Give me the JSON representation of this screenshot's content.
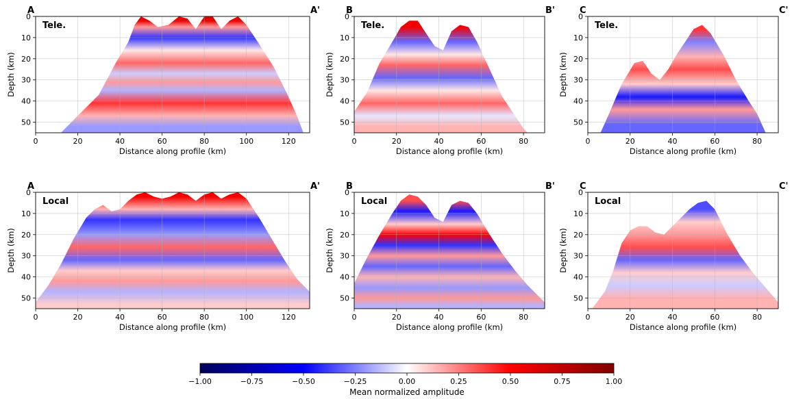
{
  "chart_data": [
    {
      "type": "heatmap",
      "label": "Tele.",
      "start_label": "A",
      "end_label": "A'",
      "xlabel": "Distance along profile (km)",
      "ylabel": "Depth (km)",
      "xlim": [
        0,
        130
      ],
      "ylim": [
        55,
        0
      ],
      "xticks": [
        0,
        20,
        40,
        60,
        80,
        100,
        120
      ],
      "yticks": [
        0,
        10,
        20,
        30,
        40,
        50
      ],
      "grid": true,
      "coverage_top_depth_km": [
        [
          12,
          55
        ],
        [
          20,
          47
        ],
        [
          30,
          37
        ],
        [
          38,
          22
        ],
        [
          44,
          12
        ],
        [
          47,
          4
        ],
        [
          50,
          0
        ],
        [
          54,
          2
        ],
        [
          58,
          5
        ],
        [
          63,
          4
        ],
        [
          68,
          0
        ],
        [
          72,
          1
        ],
        [
          76,
          6
        ],
        [
          80,
          0
        ],
        [
          84,
          0
        ],
        [
          88,
          6
        ],
        [
          92,
          2
        ],
        [
          96,
          0
        ],
        [
          100,
          4
        ],
        [
          106,
          13
        ],
        [
          113,
          24
        ],
        [
          119,
          36
        ],
        [
          124,
          47
        ],
        [
          127,
          55
        ]
      ],
      "bands": [
        {
          "depth_km": 2,
          "amplitude": 0.6
        },
        {
          "depth_km": 5,
          "amplitude": 0.2
        },
        {
          "depth_km": 10,
          "amplitude": -0.4
        },
        {
          "depth_km": 16,
          "amplitude": 0.05
        },
        {
          "depth_km": 22,
          "amplitude": 0.3
        },
        {
          "depth_km": 27,
          "amplitude": -0.1
        },
        {
          "depth_km": 31,
          "amplitude": 0.2
        },
        {
          "depth_km": 35,
          "amplitude": -0.15
        },
        {
          "depth_km": 41,
          "amplitude": 0.4
        },
        {
          "depth_km": 47,
          "amplitude": 0.15
        },
        {
          "depth_km": 52,
          "amplitude": -0.2
        }
      ]
    },
    {
      "type": "heatmap",
      "label": "Tele.",
      "start_label": "B",
      "end_label": "B'",
      "xlabel": "Distance along profile (km)",
      "ylabel": "Depth (km)",
      "xlim": [
        0,
        90
      ],
      "ylim": [
        55,
        0
      ],
      "xticks": [
        0,
        20,
        40,
        60,
        80
      ],
      "yticks": [
        0,
        10,
        20,
        30,
        40,
        50
      ],
      "grid": true,
      "coverage_top_depth_km": [
        [
          0,
          45
        ],
        [
          6,
          36
        ],
        [
          12,
          22
        ],
        [
          18,
          12
        ],
        [
          22,
          5
        ],
        [
          26,
          2
        ],
        [
          30,
          2
        ],
        [
          34,
          8
        ],
        [
          38,
          14
        ],
        [
          42,
          16
        ],
        [
          46,
          7
        ],
        [
          50,
          4
        ],
        [
          54,
          5
        ],
        [
          58,
          12
        ],
        [
          64,
          25
        ],
        [
          70,
          38
        ],
        [
          76,
          47
        ],
        [
          80,
          53
        ],
        [
          82,
          55
        ]
      ],
      "bands": [
        {
          "depth_km": 5,
          "amplitude": 0.55
        },
        {
          "depth_km": 12,
          "amplitude": -0.3
        },
        {
          "depth_km": 18,
          "amplitude": 0.05
        },
        {
          "depth_km": 23,
          "amplitude": 0.3
        },
        {
          "depth_km": 29,
          "amplitude": -0.3
        },
        {
          "depth_km": 35,
          "amplitude": 0.05
        },
        {
          "depth_km": 41,
          "amplitude": 0.3
        },
        {
          "depth_km": 47,
          "amplitude": -0.05
        },
        {
          "depth_km": 52,
          "amplitude": 0.15
        }
      ]
    },
    {
      "type": "heatmap",
      "label": "Tele.",
      "start_label": "C",
      "end_label": "C'",
      "xlabel": "Distance along profile (km)",
      "ylabel": "Depth (km)",
      "xlim": [
        0,
        90
      ],
      "ylim": [
        55,
        0
      ],
      "xticks": [
        0,
        20,
        40,
        60,
        80
      ],
      "yticks": [
        0,
        10,
        20,
        30,
        40,
        50
      ],
      "grid": true,
      "coverage_top_depth_km": [
        [
          6,
          55
        ],
        [
          10,
          46
        ],
        [
          16,
          32
        ],
        [
          22,
          22
        ],
        [
          26,
          21
        ],
        [
          30,
          27
        ],
        [
          34,
          30
        ],
        [
          38,
          25
        ],
        [
          42,
          18
        ],
        [
          46,
          12
        ],
        [
          50,
          6
        ],
        [
          54,
          4
        ],
        [
          58,
          8
        ],
        [
          64,
          18
        ],
        [
          70,
          30
        ],
        [
          76,
          40
        ],
        [
          80,
          46
        ],
        [
          84,
          55
        ]
      ],
      "bands": [
        {
          "depth_km": 6,
          "amplitude": 0.4
        },
        {
          "depth_km": 12,
          "amplitude": -0.25
        },
        {
          "depth_km": 19,
          "amplitude": 0.15
        },
        {
          "depth_km": 25,
          "amplitude": 0.35
        },
        {
          "depth_km": 32,
          "amplitude": 0.1
        },
        {
          "depth_km": 38,
          "amplitude": -0.45
        },
        {
          "depth_km": 44,
          "amplitude": 0.2
        },
        {
          "depth_km": 51,
          "amplitude": -0.3
        }
      ]
    },
    {
      "type": "heatmap",
      "label": "Local",
      "start_label": "A",
      "end_label": "A'",
      "xlabel": "Distance along profile (km)",
      "ylabel": "Depth (km)",
      "xlim": [
        0,
        130
      ],
      "ylim": [
        55,
        0
      ],
      "xticks": [
        0,
        20,
        40,
        60,
        80,
        100,
        120
      ],
      "yticks": [
        0,
        10,
        20,
        30,
        40,
        50
      ],
      "grid": true,
      "coverage_top_depth_km": [
        [
          0,
          52
        ],
        [
          6,
          44
        ],
        [
          12,
          34
        ],
        [
          18,
          22
        ],
        [
          24,
          12
        ],
        [
          28,
          8
        ],
        [
          32,
          6
        ],
        [
          36,
          9
        ],
        [
          40,
          8
        ],
        [
          44,
          4
        ],
        [
          48,
          1
        ],
        [
          52,
          0
        ],
        [
          56,
          2
        ],
        [
          60,
          3
        ],
        [
          64,
          2
        ],
        [
          68,
          0
        ],
        [
          72,
          1
        ],
        [
          76,
          4
        ],
        [
          80,
          1
        ],
        [
          84,
          0
        ],
        [
          88,
          3
        ],
        [
          92,
          1
        ],
        [
          96,
          0
        ],
        [
          100,
          3
        ],
        [
          106,
          12
        ],
        [
          112,
          22
        ],
        [
          118,
          32
        ],
        [
          124,
          41
        ],
        [
          130,
          47
        ]
      ],
      "bands": [
        {
          "depth_km": 2,
          "amplitude": 0.55
        },
        {
          "depth_km": 8,
          "amplitude": 0.15
        },
        {
          "depth_km": 13,
          "amplitude": -0.4
        },
        {
          "depth_km": 20,
          "amplitude": -0.2
        },
        {
          "depth_km": 26,
          "amplitude": 0.3
        },
        {
          "depth_km": 32,
          "amplitude": -0.3
        },
        {
          "depth_km": 37,
          "amplitude": 0.1
        },
        {
          "depth_km": 42,
          "amplitude": 0.2
        },
        {
          "depth_km": 47,
          "amplitude": -0.15
        },
        {
          "depth_km": 53,
          "amplitude": 0.1
        }
      ]
    },
    {
      "type": "heatmap",
      "label": "Local",
      "start_label": "B",
      "end_label": "B'",
      "xlabel": "Distance along profile (km)",
      "ylabel": "Depth (km)",
      "xlim": [
        0,
        90
      ],
      "ylim": [
        55,
        0
      ],
      "xticks": [
        0,
        20,
        40,
        60,
        80
      ],
      "yticks": [
        0,
        10,
        20,
        30,
        40,
        50
      ],
      "grid": true,
      "coverage_top_depth_km": [
        [
          0,
          43
        ],
        [
          6,
          31
        ],
        [
          12,
          20
        ],
        [
          18,
          10
        ],
        [
          22,
          4
        ],
        [
          26,
          1
        ],
        [
          30,
          2
        ],
        [
          34,
          6
        ],
        [
          38,
          12
        ],
        [
          42,
          14
        ],
        [
          46,
          6
        ],
        [
          50,
          4
        ],
        [
          54,
          5
        ],
        [
          58,
          10
        ],
        [
          64,
          20
        ],
        [
          70,
          29
        ],
        [
          76,
          37
        ],
        [
          82,
          44
        ],
        [
          88,
          50
        ],
        [
          90,
          52
        ]
      ],
      "bands": [
        {
          "depth_km": 4,
          "amplitude": 0.35
        },
        {
          "depth_km": 9,
          "amplitude": -0.45
        },
        {
          "depth_km": 15,
          "amplitude": 0.1
        },
        {
          "depth_km": 20,
          "amplitude": 0.5
        },
        {
          "depth_km": 25,
          "amplitude": -0.4
        },
        {
          "depth_km": 30,
          "amplitude": 0.2
        },
        {
          "depth_km": 35,
          "amplitude": -0.3
        },
        {
          "depth_km": 40,
          "amplitude": 0.15
        },
        {
          "depth_km": 45,
          "amplitude": -0.2
        },
        {
          "depth_km": 50,
          "amplitude": 0.2
        },
        {
          "depth_km": 54,
          "amplitude": -0.15
        }
      ]
    },
    {
      "type": "heatmap",
      "label": "Local",
      "start_label": "C",
      "end_label": "C'",
      "xlabel": "Distance along profile (km)",
      "ylabel": "Depth (km)",
      "xlim": [
        0,
        90
      ],
      "ylim": [
        55,
        0
      ],
      "xticks": [
        0,
        20,
        40,
        60,
        80
      ],
      "yticks": [
        0,
        10,
        20,
        30,
        40,
        50
      ],
      "grid": true,
      "coverage_top_depth_km": [
        [
          2,
          55
        ],
        [
          8,
          47
        ],
        [
          12,
          37
        ],
        [
          16,
          24
        ],
        [
          20,
          18
        ],
        [
          24,
          16
        ],
        [
          28,
          16
        ],
        [
          32,
          19
        ],
        [
          36,
          20
        ],
        [
          40,
          16
        ],
        [
          44,
          12
        ],
        [
          48,
          8
        ],
        [
          52,
          5
        ],
        [
          56,
          4
        ],
        [
          60,
          8
        ],
        [
          66,
          20
        ],
        [
          72,
          30
        ],
        [
          78,
          38
        ],
        [
          84,
          45
        ],
        [
          90,
          52
        ]
      ],
      "bands": [
        {
          "depth_km": 8,
          "amplitude": -0.35
        },
        {
          "depth_km": 14,
          "amplitude": 0.1
        },
        {
          "depth_km": 20,
          "amplitude": 0.2
        },
        {
          "depth_km": 26,
          "amplitude": 0.35
        },
        {
          "depth_km": 32,
          "amplitude": -0.3
        },
        {
          "depth_km": 38,
          "amplitude": 0.1
        },
        {
          "depth_km": 44,
          "amplitude": -0.1
        },
        {
          "depth_km": 50,
          "amplitude": 0.15
        }
      ]
    }
  ],
  "colorbar": {
    "label": "Mean normalized amplitude",
    "ticks": [
      "−1.00",
      "−0.75",
      "−0.50",
      "−0.25",
      "0.00",
      "0.25",
      "0.50",
      "0.75",
      "1.00"
    ],
    "range": [
      -1,
      1
    ],
    "colormap": [
      "#00005a",
      "#0000ff",
      "#ffffff",
      "#ff0000",
      "#800000"
    ]
  }
}
